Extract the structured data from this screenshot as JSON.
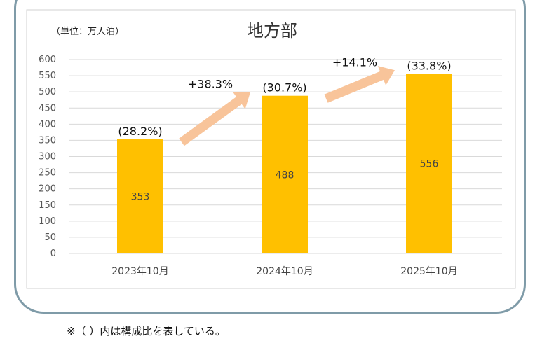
{
  "chart_data": {
    "type": "bar",
    "title": "地方部",
    "unit": "（単位：万人泊）",
    "categories": [
      "2023年10月",
      "2024年10月",
      "2025年10月"
    ],
    "values": [
      353,
      488,
      556
    ],
    "value_labels": [
      "353",
      "488",
      "556"
    ],
    "shares": [
      "(28.2%)",
      "(30.7%)",
      "(33.8%)"
    ],
    "growth": [
      "+38.3%",
      "+14.1%"
    ],
    "yticks": [
      "0",
      "50",
      "100",
      "150",
      "200",
      "250",
      "300",
      "350",
      "400",
      "450",
      "500",
      "550",
      "600"
    ],
    "ylim": [
      0,
      600
    ],
    "grid": true,
    "colors": {
      "bar": "#FFC000",
      "arrow": "#F8C49A",
      "grid": "#d9d9d9"
    }
  },
  "footnote": "※（  ）内は構成比を表している。"
}
